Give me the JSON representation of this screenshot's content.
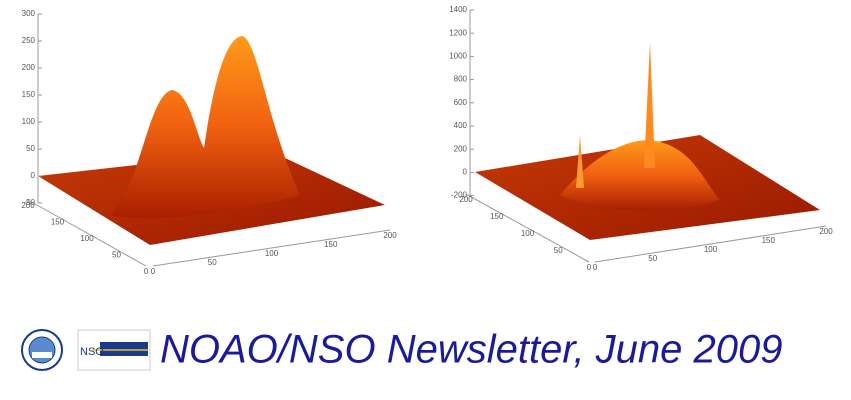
{
  "plots": [
    {
      "z_ticks": [
        300,
        250,
        200,
        150,
        100,
        50,
        0,
        -50
      ],
      "x_ticks": [
        0,
        50,
        100,
        150,
        200
      ],
      "y_ticks": [
        0,
        50,
        100,
        150,
        200
      ]
    },
    {
      "z_ticks": [
        1400,
        1200,
        1000,
        800,
        600,
        400,
        200,
        0,
        -200
      ],
      "x_ticks": [
        0,
        50,
        100,
        150,
        200
      ],
      "y_ticks": [
        0,
        50,
        100,
        150,
        200
      ]
    }
  ],
  "footer": {
    "logo_text": "NSO",
    "title": "NOAO/NSO Newsletter, June 2009"
  }
}
